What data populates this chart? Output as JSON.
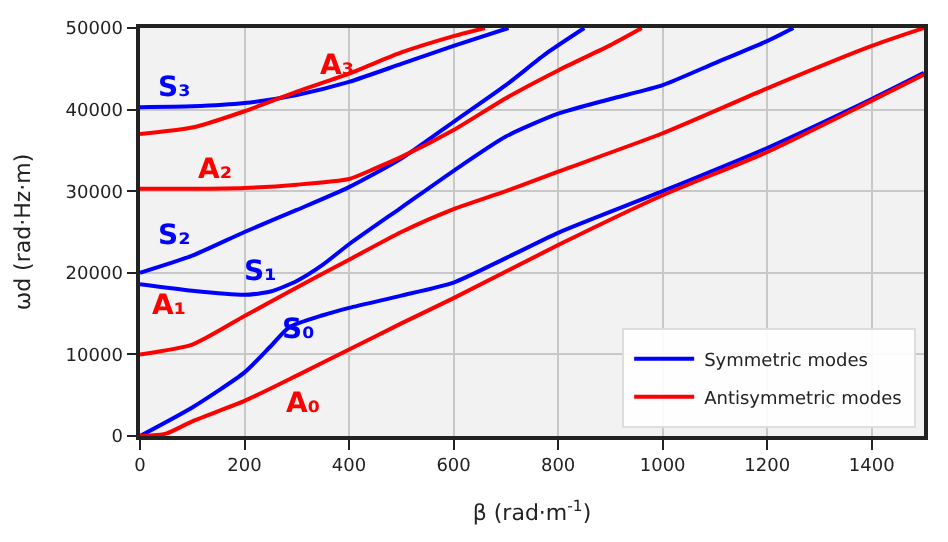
{
  "chart_data": {
    "type": "line",
    "xlabel": "β (rad·m$^{-1}$)",
    "ylabel": "ωd (rad·Hz·m)",
    "xlim": [
      0,
      1500
    ],
    "ylim": [
      0,
      50000
    ],
    "xticks": [
      0,
      200,
      400,
      600,
      800,
      1000,
      1200,
      1400
    ],
    "yticks": [
      0,
      10000,
      20000,
      30000,
      40000,
      50000
    ],
    "grid": true,
    "legend": "bottom right",
    "line_style": "solid",
    "marker": "none",
    "series": [
      {
        "name": "Symmetric modes",
        "color": "#0000ff",
        "x": [
          0,
          100,
          200,
          250,
          285,
          350,
          400,
          500,
          600,
          700,
          800,
          1000,
          1200,
          1400,
          1500
        ],
        "values": [
          0,
          3500,
          7800,
          11000,
          13300,
          14800,
          15700,
          17200,
          18800,
          21800,
          24900,
          30000,
          35300,
          41300,
          44500
        ]
      },
      {
        "name": "Antisymmetric modes",
        "color": "#ff0000",
        "x": [
          0,
          50,
          100,
          200,
          300,
          400,
          500,
          600,
          800,
          1000,
          1200,
          1400,
          1500
        ],
        "values": [
          0,
          300,
          1800,
          4300,
          7400,
          10600,
          13800,
          16900,
          23400,
          29500,
          34800,
          41100,
          44300
        ]
      },
      {
        "color": "#0000ff",
        "x": [
          0,
          100,
          200,
          250,
          300,
          350,
          400,
          500,
          600,
          700,
          800,
          900,
          1000,
          1100,
          1200,
          1250
        ],
        "values": [
          18600,
          17800,
          17300,
          17700,
          19000,
          21000,
          23500,
          28000,
          32500,
          36700,
          39500,
          41300,
          43000,
          45700,
          48400,
          50000
        ]
      },
      {
        "color": "#ff0000",
        "x": [
          0,
          100,
          200,
          300,
          400,
          500,
          600,
          700,
          800,
          1000,
          1200,
          1400,
          1500
        ],
        "values": [
          10000,
          11200,
          14700,
          18200,
          21600,
          25000,
          27800,
          30000,
          32400,
          37100,
          42600,
          47800,
          50000
        ]
      },
      {
        "color": "#0000ff",
        "x": [
          0,
          100,
          200,
          300,
          400,
          500,
          600,
          700,
          780,
          850
        ],
        "values": [
          20000,
          22100,
          25000,
          27700,
          30500,
          34000,
          38500,
          43000,
          47000,
          50000
        ]
      },
      {
        "color": "#ff0000",
        "x": [
          0,
          100,
          200,
          300,
          400,
          450,
          500,
          600,
          700,
          800,
          900,
          960
        ],
        "values": [
          30300,
          30300,
          30400,
          30800,
          31500,
          32800,
          34200,
          37500,
          41400,
          44800,
          47900,
          50000
        ]
      },
      {
        "color": "#0000ff",
        "x": [
          0,
          100,
          200,
          300,
          400,
          500,
          600,
          705
        ],
        "values": [
          40300,
          40400,
          40800,
          41800,
          43400,
          45600,
          47800,
          50000
        ]
      },
      {
        "color": "#ff0000",
        "x": [
          0,
          100,
          200,
          300,
          400,
          500,
          600,
          660
        ],
        "values": [
          37000,
          37800,
          39800,
          42200,
          44400,
          47000,
          49000,
          50000
        ]
      }
    ],
    "annotations": [
      "S₀",
      "A₀",
      "S₁",
      "A₁",
      "S₂",
      "A₂",
      "S₃",
      "A₃"
    ]
  }
}
